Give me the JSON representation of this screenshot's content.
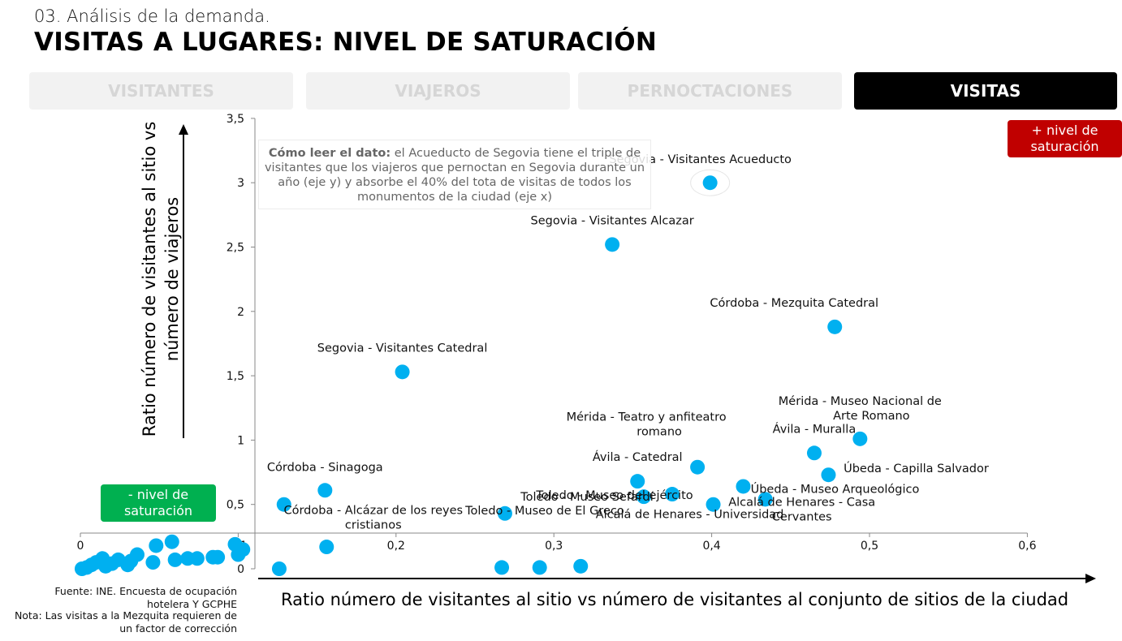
{
  "header": {
    "subtitle": "03. Análisis de la demanda.",
    "title": "VISITAS A LUGARES: NIVEL DE SATURACIÓN"
  },
  "tabs": [
    {
      "label": "VISITANTES",
      "active": false
    },
    {
      "label": "VIAJEROS",
      "active": false
    },
    {
      "label": "PERNOCTACIONES",
      "active": false
    },
    {
      "label": "VISITAS",
      "active": true
    }
  ],
  "badges": {
    "high": {
      "text": "+ nivel de saturación",
      "color": "#c00000"
    },
    "low": {
      "text": "- nivel de saturación",
      "color": "#00b050"
    }
  },
  "note": {
    "bold": "Cómo leer el dato:",
    "text": " el Acueducto de Segovia tiene el triple de visitantes que los viajeros que pernoctan en Segovia durante un año (eje y) y absorbe el 40% del tota de visitas de todos los monumentos de la ciudad (eje x)"
  },
  "source": {
    "line1": "Fuente: INE. Encuesta de ocupación hotelera Y GCPHE",
    "line2": "Nota: Las visitas a la Mezquita requieren de un factor de corrección"
  },
  "chart_data": {
    "type": "scatter",
    "xlabel": "Ratio número de visitantes al sitio vs número de visitantes al conjunto de sitios de la ciudad",
    "ylabel": "Ratio número de visitantes al sitio vs número de viajeros",
    "xlim": [
      0,
      0.6
    ],
    "ylim": [
      0,
      3.5
    ],
    "x_ticks": [
      "0",
      "0,1",
      "0,2",
      "0,3",
      "0,4",
      "0,5",
      "0,6"
    ],
    "y_ticks": [
      "0",
      "0,5",
      "1",
      "1,5",
      "2",
      "2,5",
      "3",
      "3,5"
    ],
    "point_color": "#00b0f0",
    "points": [
      {
        "label": "Segovia - Visitantes Acueducto",
        "x": 0.399,
        "y": 3.0
      },
      {
        "label": "Segovia - Visitantes Alcazar",
        "x": 0.337,
        "y": 2.52
      },
      {
        "label": "Córdoba - Mezquita Catedral",
        "x": 0.478,
        "y": 1.88
      },
      {
        "label": "Segovia - Visitantes Catedral",
        "x": 0.204,
        "y": 1.53
      },
      {
        "label": "Mérida - Museo Nacional de Arte Romano",
        "x": 0.494,
        "y": 1.01
      },
      {
        "label": "Ávila - Muralla",
        "x": 0.465,
        "y": 0.9
      },
      {
        "label": "Mérida - Teatro y anfiteatro romano",
        "x": 0.391,
        "y": 0.79
      },
      {
        "label": "Ávila - Catedral",
        "x": 0.353,
        "y": 0.68
      },
      {
        "label": "Úbeda - Capilla Salvador",
        "x": 0.474,
        "y": 0.73
      },
      {
        "label": "Toledo - Museo del ejército",
        "x": 0.357,
        "y": 0.56
      },
      {
        "label": "Toledo - Museo Sefardí",
        "x": 0.375,
        "y": 0.58
      },
      {
        "label": "Úbeda - Museo Arqueológico",
        "x": 0.42,
        "y": 0.64
      },
      {
        "label": "Alcalá de Henares - Universidad",
        "x": 0.401,
        "y": 0.5
      },
      {
        "label": "Alcalá de Henares - Casa Cervantes",
        "x": 0.434,
        "y": 0.54
      },
      {
        "label": "Córdoba - Sinagoga",
        "x": 0.155,
        "y": 0.61
      },
      {
        "label": "Córdoba - Alcázar de los reyes cristianos",
        "x": 0.129,
        "y": 0.5
      },
      {
        "label": "Toledo - Museo de El Greco",
        "x": 0.269,
        "y": 0.43
      },
      {
        "label": "",
        "x": 0.156,
        "y": 0.17
      },
      {
        "label": "",
        "x": 0.126,
        "y": 0.0
      },
      {
        "label": "",
        "x": 0.267,
        "y": 0.01
      },
      {
        "label": "",
        "x": 0.291,
        "y": 0.01
      },
      {
        "label": "",
        "x": 0.317,
        "y": 0.02
      },
      {
        "label": "",
        "x": 0.103,
        "y": 0.15
      },
      {
        "label": "",
        "x": 0.1,
        "y": 0.11
      },
      {
        "label": "",
        "x": 0.098,
        "y": 0.19
      },
      {
        "label": "",
        "x": 0.087,
        "y": 0.09
      },
      {
        "label": "",
        "x": 0.084,
        "y": 0.09
      },
      {
        "label": "",
        "x": 0.074,
        "y": 0.08
      },
      {
        "label": "",
        "x": 0.068,
        "y": 0.08
      },
      {
        "label": "",
        "x": 0.06,
        "y": 0.07
      },
      {
        "label": "",
        "x": 0.058,
        "y": 0.21
      },
      {
        "label": "",
        "x": 0.048,
        "y": 0.18
      },
      {
        "label": "",
        "x": 0.046,
        "y": 0.05
      },
      {
        "label": "",
        "x": 0.036,
        "y": 0.11
      },
      {
        "label": "",
        "x": 0.032,
        "y": 0.06
      },
      {
        "label": "",
        "x": 0.03,
        "y": 0.03
      },
      {
        "label": "",
        "x": 0.024,
        "y": 0.07
      },
      {
        "label": "",
        "x": 0.02,
        "y": 0.04
      },
      {
        "label": "",
        "x": 0.016,
        "y": 0.02
      },
      {
        "label": "",
        "x": 0.014,
        "y": 0.08
      },
      {
        "label": "",
        "x": 0.01,
        "y": 0.05
      },
      {
        "label": "",
        "x": 0.007,
        "y": 0.03
      },
      {
        "label": "",
        "x": 0.004,
        "y": 0.01
      },
      {
        "label": "",
        "x": 0.001,
        "y": 0.0
      }
    ]
  }
}
